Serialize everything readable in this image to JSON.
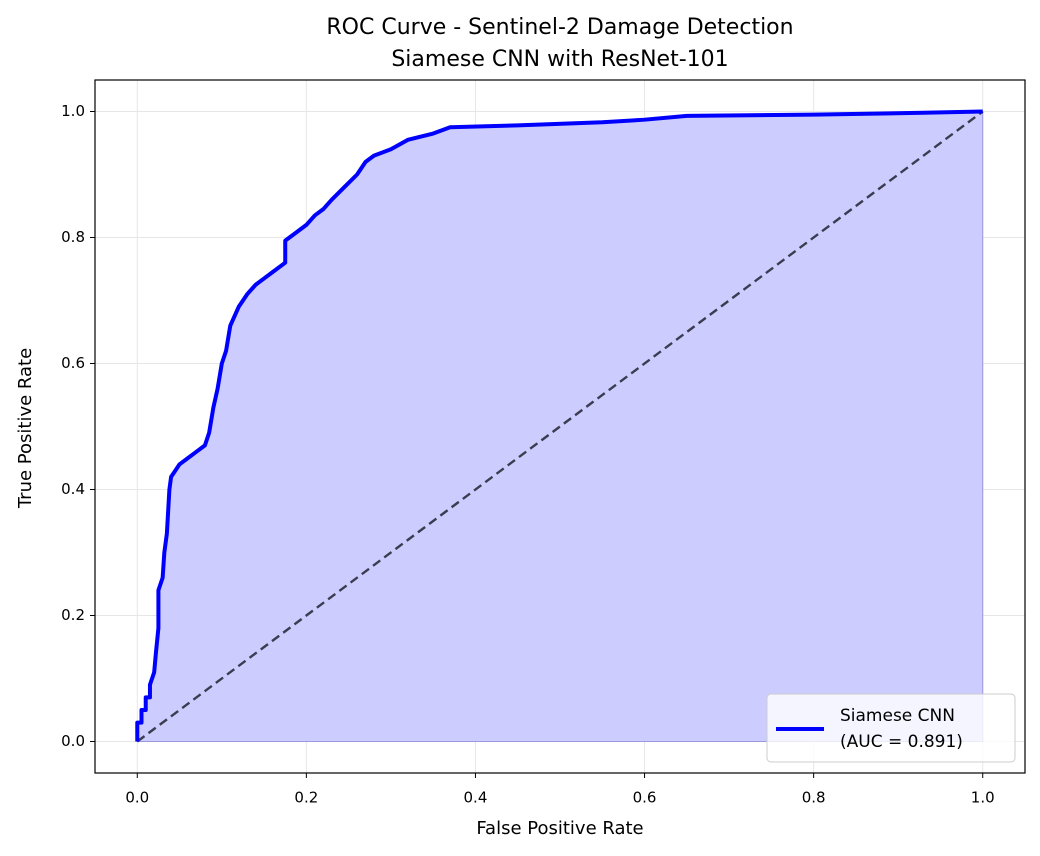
{
  "chart_data": {
    "type": "line",
    "title": "ROC Curve - Sentinel-2 Damage Detection",
    "subtitle": "Siamese CNN with ResNet-101",
    "x_label": "False Positive Rate",
    "y_label": "True Positive Rate",
    "x": [
      0,
      0,
      0.005,
      0.005,
      0.01,
      0.01,
      0.015,
      0.015,
      0.02,
      0.022,
      0.025,
      0.025,
      0.03,
      0.032,
      0.035,
      0.038,
      0.04,
      0.045,
      0.05,
      0.06,
      0.07,
      0.08,
      0.085,
      0.09,
      0.095,
      0.1,
      0.105,
      0.11,
      0.12,
      0.13,
      0.14,
      0.15,
      0.16,
      0.175,
      0.175,
      0.185,
      0.2,
      0.21,
      0.22,
      0.23,
      0.245,
      0.26,
      0.27,
      0.28,
      0.3,
      0.32,
      0.35,
      0.37,
      0.45,
      0.55,
      0.6,
      0.65,
      0.8,
      0.93,
      1.0
    ],
    "series": [
      {
        "name": "Siamese CNN\n(AUC = 0.891)",
        "color": "#0000ff",
        "fill_color": "#ccccff",
        "values": [
          0,
          0.03,
          0.03,
          0.05,
          0.05,
          0.07,
          0.07,
          0.09,
          0.11,
          0.14,
          0.18,
          0.24,
          0.26,
          0.3,
          0.33,
          0.4,
          0.42,
          0.43,
          0.44,
          0.45,
          0.46,
          0.47,
          0.49,
          0.53,
          0.56,
          0.6,
          0.62,
          0.66,
          0.69,
          0.71,
          0.725,
          0.735,
          0.745,
          0.76,
          0.795,
          0.805,
          0.82,
          0.835,
          0.845,
          0.86,
          0.88,
          0.9,
          0.92,
          0.93,
          0.94,
          0.955,
          0.965,
          0.975,
          0.978,
          0.983,
          0.987,
          0.993,
          0.995,
          0.998,
          1.0
        ]
      }
    ],
    "xlim": [
      -0.05,
      1.05
    ],
    "ylim": [
      -0.05,
      1.05
    ],
    "xticks": [
      {
        "value": 0,
        "label": "0.0"
      },
      0.2,
      0.4,
      0.6,
      0.8,
      {
        "value": 1,
        "label": "1.0"
      }
    ],
    "yticks": [
      {
        "value": 0,
        "label": "0.0"
      },
      0.2,
      0.4,
      0.6,
      0.8,
      {
        "value": 1,
        "label": "1.0"
      }
    ],
    "grid": true,
    "diagonal": true,
    "legend": "lower right"
  }
}
